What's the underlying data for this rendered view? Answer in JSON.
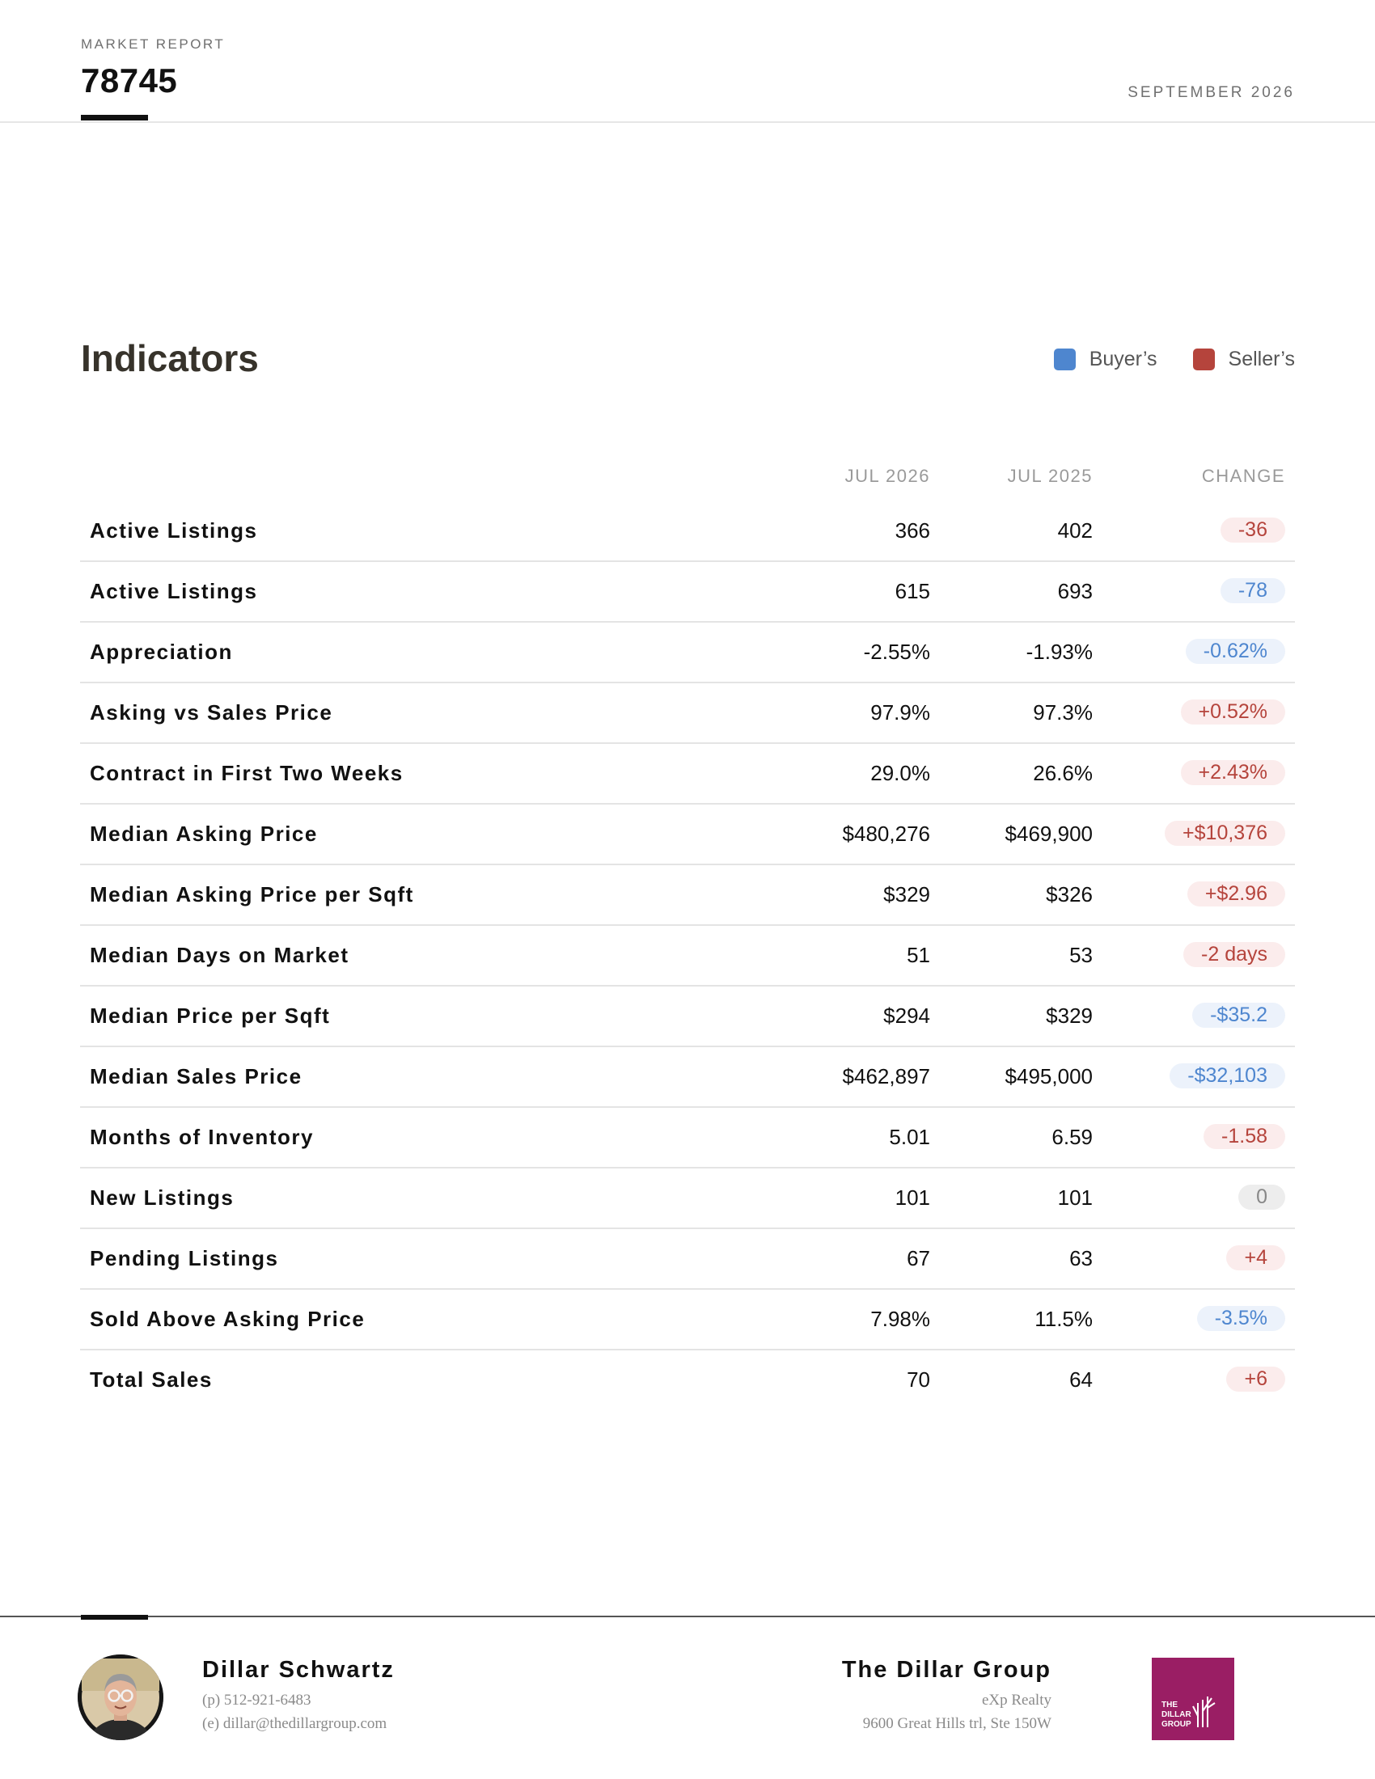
{
  "header": {
    "eyebrow": "MARKET REPORT",
    "zip": "78745",
    "date": "SEPTEMBER 2026"
  },
  "indicators": {
    "title": "Indicators",
    "legend": [
      {
        "label": "Buyer’s",
        "color": "#4e86cf"
      },
      {
        "label": "Seller’s",
        "color": "#b5443c"
      }
    ],
    "columns": [
      "JUL 2026",
      "JUL 2025",
      "CHANGE"
    ],
    "rows": [
      {
        "label": "Active Listings",
        "current": "366",
        "previous": "402",
        "change": "-36",
        "favors": "seller"
      },
      {
        "label": "Active Listings",
        "current": "615",
        "previous": "693",
        "change": "-78",
        "favors": "buyer"
      },
      {
        "label": "Appreciation",
        "current": "-2.55%",
        "previous": "-1.93%",
        "change": "-0.62%",
        "favors": "buyer"
      },
      {
        "label": "Asking vs Sales Price",
        "current": "97.9%",
        "previous": "97.3%",
        "change": "+0.52%",
        "favors": "seller"
      },
      {
        "label": "Contract in First Two Weeks",
        "current": "29.0%",
        "previous": "26.6%",
        "change": "+2.43%",
        "favors": "seller"
      },
      {
        "label": "Median Asking Price",
        "current": "$480,276",
        "previous": "$469,900",
        "change": "+$10,376",
        "favors": "seller"
      },
      {
        "label": "Median Asking Price per Sqft",
        "current": "$329",
        "previous": "$326",
        "change": "+$2.96",
        "favors": "seller"
      },
      {
        "label": "Median Days on Market",
        "current": "51",
        "previous": "53",
        "change": "-2 days",
        "favors": "seller"
      },
      {
        "label": "Median Price per Sqft",
        "current": "$294",
        "previous": "$329",
        "change": "-$35.2",
        "favors": "buyer"
      },
      {
        "label": "Median Sales Price",
        "current": "$462,897",
        "previous": "$495,000",
        "change": "-$32,103",
        "favors": "buyer"
      },
      {
        "label": "Months of Inventory",
        "current": "5.01",
        "previous": "6.59",
        "change": "-1.58",
        "favors": "seller"
      },
      {
        "label": "New Listings",
        "current": "101",
        "previous": "101",
        "change": "0",
        "favors": "neutral"
      },
      {
        "label": "Pending Listings",
        "current": "67",
        "previous": "63",
        "change": "+4",
        "favors": "seller"
      },
      {
        "label": "Sold Above Asking Price",
        "current": "7.98%",
        "previous": "11.5%",
        "change": "-3.5%",
        "favors": "buyer"
      },
      {
        "label": "Total Sales",
        "current": "70",
        "previous": "64",
        "change": "+6",
        "favors": "seller"
      }
    ]
  },
  "footer": {
    "agent_name": "Dillar Schwartz",
    "agent_phone": "(p) 512-921-6483",
    "agent_email": "(e) dillar@thedillargroup.com",
    "group_name": "The Dillar Group",
    "brokerage": "eXp Realty",
    "address": "9600 Great Hills trl, Ste 150W",
    "logo_text": [
      "THE",
      "DILLAR",
      "GROUP"
    ],
    "logo_color": "#9a1e64",
    "avatar_icon": "agent-portrait-icon"
  }
}
